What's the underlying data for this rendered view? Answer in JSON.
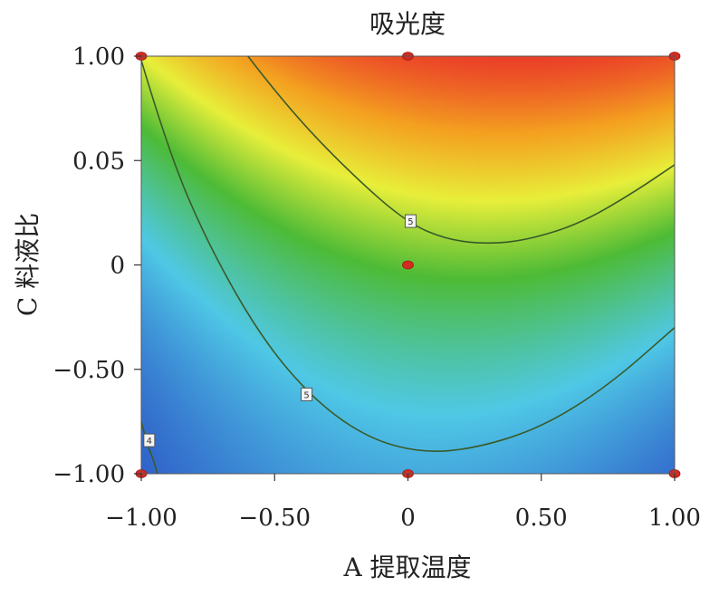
{
  "chart_data": {
    "type": "heatmap",
    "title": "吸光度",
    "xlabel": "A 提取温度",
    "ylabel": "C 料液比",
    "x_ticks": [
      "−1.00",
      "−0.50",
      "0",
      "0.50",
      "1.00"
    ],
    "y_ticks": [
      "−1.00",
      "−0.50",
      "0",
      "0.05",
      "1.00"
    ],
    "xlim": [
      -1,
      1
    ],
    "ylim": [
      -1,
      1
    ],
    "colorscale": [
      "#2a4fc4",
      "#4fc8e6",
      "#4dbb36",
      "#e8ef3a",
      "#f4a020",
      "#e8262a"
    ],
    "contours": [
      {
        "label": "5",
        "points": [
          [
            -0.6,
            1.0
          ],
          [
            -0.45,
            0.75
          ],
          [
            -0.2,
            0.42
          ],
          [
            0.0,
            0.2
          ],
          [
            0.15,
            0.12
          ],
          [
            0.3,
            0.1
          ],
          [
            0.45,
            0.12
          ],
          [
            0.65,
            0.2
          ],
          [
            0.85,
            0.35
          ],
          [
            1.0,
            0.48
          ]
        ]
      },
      {
        "label": "5",
        "points": [
          [
            -1.0,
            0.98
          ],
          [
            -0.9,
            0.55
          ],
          [
            -0.75,
            0.1
          ],
          [
            -0.55,
            -0.35
          ],
          [
            -0.35,
            -0.65
          ],
          [
            -0.15,
            -0.83
          ],
          [
            0.05,
            -0.9
          ],
          [
            0.25,
            -0.88
          ],
          [
            0.5,
            -0.78
          ],
          [
            0.75,
            -0.58
          ],
          [
            1.0,
            -0.3
          ]
        ]
      },
      {
        "label": "4",
        "points": [
          [
            -1.0,
            -0.75
          ],
          [
            -0.98,
            -0.85
          ],
          [
            -0.95,
            -0.95
          ],
          [
            -0.94,
            -1.0
          ]
        ]
      }
    ],
    "contour_labels": [
      {
        "text": "5",
        "x": 0.01,
        "y": 0.21
      },
      {
        "text": "5",
        "x": -0.38,
        "y": -0.62
      },
      {
        "text": "4",
        "x": -0.97,
        "y": -0.84
      }
    ],
    "design_points": [
      {
        "x": -1,
        "y": 1
      },
      {
        "x": 0,
        "y": 1
      },
      {
        "x": 1,
        "y": 1
      },
      {
        "x": 0,
        "y": 0
      },
      {
        "x": -1,
        "y": -1
      },
      {
        "x": 0,
        "y": -1
      },
      {
        "x": 1,
        "y": -1
      }
    ],
    "grid": false
  }
}
